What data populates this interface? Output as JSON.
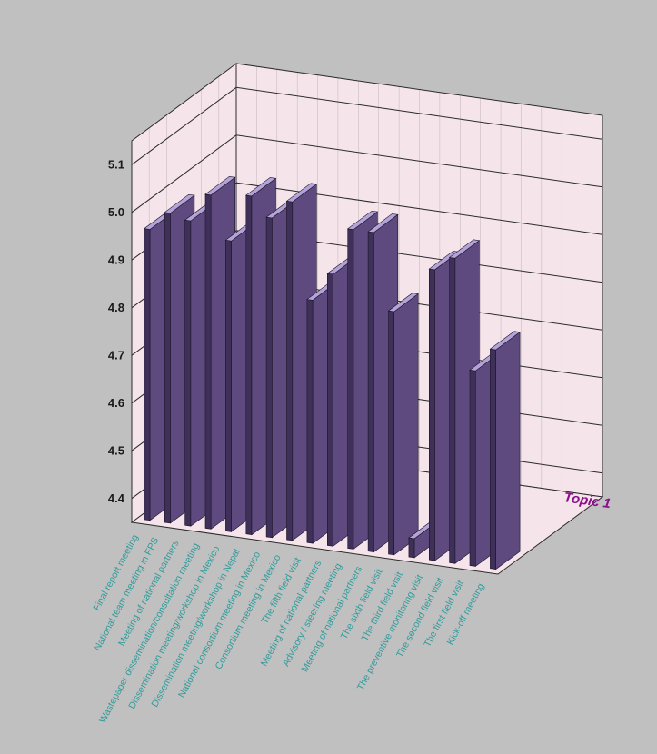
{
  "chart_data": {
    "type": "bar",
    "projection": "3d",
    "title": "",
    "xlabel": "",
    "ylabel": "",
    "ylim": [
      4.35,
      5.15
    ],
    "yticks": [
      "4.4",
      "4.5",
      "4.6",
      "4.7",
      "4.8",
      "4.9",
      "5.0",
      "5.1"
    ],
    "grid": true,
    "categories": [
      "Final report meeting",
      "National team meeting in FPS",
      "Meeting of national partners",
      "Wastepaper dissemination/consultation meeting",
      "Dissemination meeting/workshop in Mexico",
      "Dissemination meeting/workshop in Nepal",
      "National consortium meeting in Mexico",
      "Consortium meeting in Mexico",
      "The fifth field visit",
      "Meeting of national partners",
      "Advisory / steering meeting",
      "Meeting of national partners",
      "The sixth field visit",
      "The third field visit",
      "The preventive monitoring visit",
      "The second field visit",
      "The first field visit",
      "Kick-off meeting"
    ],
    "series": [
      {
        "name": "Topic 1",
        "values": [
          4.96,
          5.0,
          4.99,
          5.05,
          4.96,
          5.06,
          5.02,
          5.06,
          4.86,
          4.92,
          5.02,
          5.02,
          4.86,
          4.39,
          4.96,
          4.99,
          4.76,
          4.81
        ]
      }
    ],
    "colors": {
      "bar_front": "#5e4a7e",
      "bar_side": "#3f3059",
      "bar_top": "#b3a3d8",
      "wall": "#f5e4ea",
      "grid": "#2b2b2b",
      "tick_text": "#1a1a1a",
      "category_text": "#2f9b9b",
      "series_text": "#8a0f8a"
    }
  }
}
